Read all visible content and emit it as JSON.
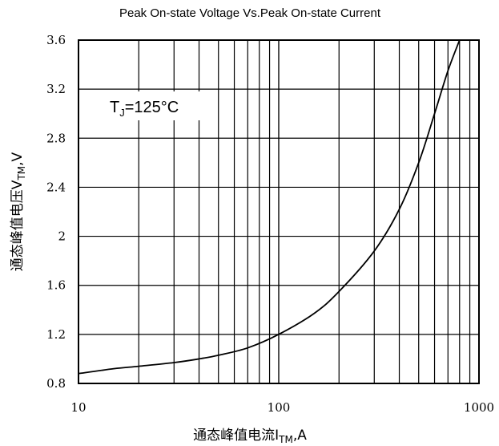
{
  "chart_data": {
    "type": "line",
    "title": "Peak On-state Voltage Vs.Peak On-state Current",
    "xlabel": {
      "main": "通态峰值电流I",
      "sub": "TM",
      "tail": ",A"
    },
    "ylabel": {
      "main": "通态峰值电压V",
      "sub": "TM",
      "tail": ",V"
    },
    "x_scale": "log",
    "xlim": [
      10,
      1000
    ],
    "ylim": [
      0.8,
      3.6
    ],
    "x_ticks": [
      10,
      100,
      1000
    ],
    "x_tick_labels": [
      "10",
      "100",
      "1000"
    ],
    "y_ticks": [
      0.8,
      1.2,
      1.6,
      2.0,
      2.4,
      2.8,
      3.2,
      3.6
    ],
    "y_tick_labels": [
      "0.8",
      "1.2",
      "1.6",
      "2",
      "2.4",
      "2.8",
      "3.2",
      "3.6"
    ],
    "grid": true,
    "annotation": {
      "main": "T",
      "sub": "J",
      "tail": "=125°C"
    },
    "series": [
      {
        "x": [
          10,
          15,
          20,
          30,
          40,
          50,
          70,
          100,
          150,
          200,
          300,
          400,
          500,
          600,
          700,
          800
        ],
        "y": [
          0.88,
          0.92,
          0.94,
          0.97,
          1.0,
          1.03,
          1.09,
          1.2,
          1.37,
          1.55,
          1.88,
          2.22,
          2.6,
          3.0,
          3.35,
          3.6
        ]
      }
    ]
  }
}
